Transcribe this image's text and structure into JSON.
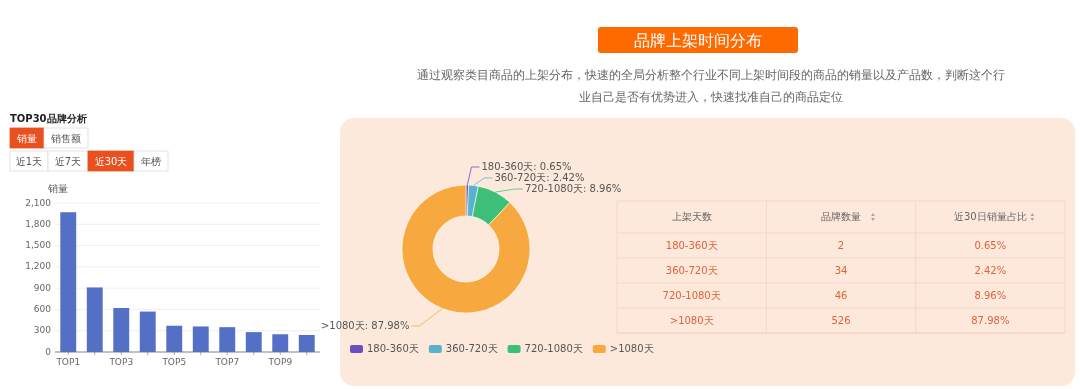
{
  "chart_data": [
    {
      "type": "other",
      "title": "品牌上架时间分布",
      "subtitle": "通过观察类目商品的上架分布，快速的全局分析整个行业不同上架时间段的商品的销量以及产品数，判断这个行业自己是否有优势进入，快速找准自己的商品定位"
    },
    {
      "type": "bar",
      "title": "TOP30品牌分析",
      "annotations": [
        "销量",
        "销售额",
        "近1天",
        "近7天",
        "近30天",
        "年榜"
      ],
      "ylabel": "销量",
      "categories": [
        "TOP1",
        null,
        "TOP3",
        null,
        "TOP5",
        null,
        "TOP7",
        null,
        "TOP9",
        null
      ],
      "values": [
        1970,
        910,
        620,
        570,
        370,
        360,
        350,
        280,
        250,
        240
      ],
      "color": "#5470c6",
      "ylim": [
        0,
        2100
      ],
      "yticks": [
        0,
        300,
        600,
        900,
        {
          "value": 1200,
          "label": "1,200"
        },
        {
          "value": 1500,
          "label": "1,500"
        },
        {
          "value": 1800,
          "label": "1,800"
        },
        {
          "value": 2100,
          "label": "2,100"
        }
      ],
      "grid": "y"
    },
    {
      "type": "donut",
      "categories": [
        "180-360天",
        "360-720天",
        "720-1080天",
        ">1080天"
      ],
      "values": [
        0.65,
        2.42,
        8.96,
        87.98
      ],
      "value_labels": [
        "180-360天: 0.65%",
        "360-720天: 2.42%",
        "720-1080天: 8.96%",
        ">1080天: 87.98%"
      ],
      "colors": [
        "#6b4fbf",
        "#5ab1cf",
        "#3dbf78",
        "#f7a940"
      ],
      "legend": "bottom"
    },
    {
      "type": "other",
      "categories": [
        "上架天数",
        "品牌数量",
        "近30日销量占比"
      ],
      "y_categories": [
        "180-360天",
        "360-720天",
        "720-1080天",
        ">1080天"
      ],
      "cells": [
        [
          "2",
          "0.65%"
        ],
        [
          "34",
          "2.42%"
        ],
        [
          "46",
          "8.96%"
        ],
        [
          "526",
          "87.98%"
        ]
      ]
    }
  ]
}
